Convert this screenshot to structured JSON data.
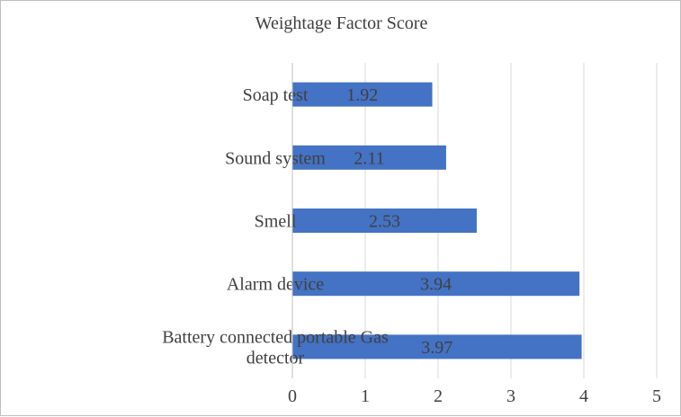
{
  "chart_data": {
    "type": "bar",
    "orientation": "horizontal",
    "title": "Weightage Factor Score",
    "categories": [
      "Soap test",
      "Sound system",
      "Smell",
      "Alarm device",
      [
        "Battery connected portable Gas",
        "detector"
      ]
    ],
    "values": [
      1.92,
      2.11,
      2.53,
      3.94,
      3.97
    ],
    "value_labels": [
      "1.92",
      "2.11",
      "2.53",
      "3.94",
      "3.97"
    ],
    "xlim": [
      0,
      5
    ],
    "xticks": [
      0,
      1,
      2,
      3,
      4,
      5
    ],
    "grid": "vertical",
    "legend": "none",
    "bar_color": "#4472C4"
  }
}
